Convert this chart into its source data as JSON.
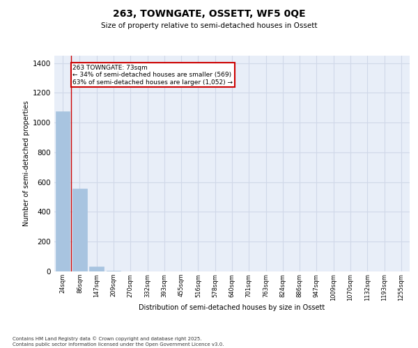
{
  "title": "263, TOWNGATE, OSSETT, WF5 0QE",
  "subtitle": "Size of property relative to semi-detached houses in Ossett",
  "xlabel": "Distribution of semi-detached houses by size in Ossett",
  "ylabel": "Number of semi-detached properties",
  "categories": [
    "24sqm",
    "86sqm",
    "147sqm",
    "209sqm",
    "270sqm",
    "332sqm",
    "393sqm",
    "455sqm",
    "516sqm",
    "578sqm",
    "640sqm",
    "701sqm",
    "763sqm",
    "824sqm",
    "886sqm",
    "947sqm",
    "1009sqm",
    "1070sqm",
    "1132sqm",
    "1193sqm",
    "1255sqm"
  ],
  "values": [
    1075,
    555,
    35,
    3,
    0,
    0,
    0,
    0,
    0,
    0,
    0,
    0,
    0,
    0,
    0,
    0,
    0,
    0,
    0,
    0,
    0
  ],
  "bar_color": "#a8c4e0",
  "bar_edge_color": "#a8c4e0",
  "grid_color": "#d0d8e8",
  "background_color": "#e8eef8",
  "annotation_title": "263 TOWNGATE: 73sqm",
  "annotation_line1": "← 34% of semi-detached houses are smaller (569)",
  "annotation_line2": "63% of semi-detached houses are larger (1,052) →",
  "annotation_box_color": "#cc0000",
  "vline_x": 0.5,
  "ylim": [
    0,
    1450
  ],
  "yticks": [
    0,
    200,
    400,
    600,
    800,
    1000,
    1200,
    1400
  ],
  "footer_line1": "Contains HM Land Registry data © Crown copyright and database right 2025.",
  "footer_line2": "Contains public sector information licensed under the Open Government Licence v3.0."
}
